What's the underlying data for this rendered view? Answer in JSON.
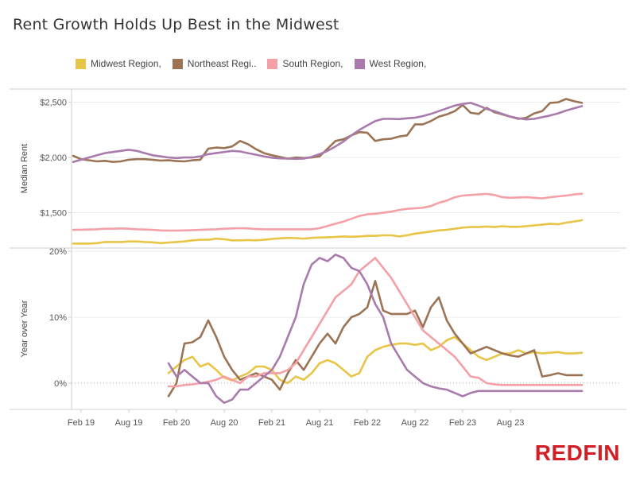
{
  "header": {
    "title": "Rent Growth Holds Up Best in the Midwest"
  },
  "brand": {
    "logo_text": "REDFIN"
  },
  "colors": {
    "midwest": "#e8c547",
    "northeast": "#9b7456",
    "south": "#f4a0a6",
    "west": "#a97bac"
  },
  "legend": [
    {
      "label": "Midwest Region,",
      "color": "#e8c547"
    },
    {
      "label": "Northeast Regi..",
      "color": "#9b7456"
    },
    {
      "label": "South Region,",
      "color": "#f4a0a6"
    },
    {
      "label": "West Region,",
      "color": "#a97bac"
    }
  ],
  "chart_data": {
    "type": "line",
    "x_tick_labels": [
      "Feb 19",
      "Aug 19",
      "Feb 20",
      "Aug 20",
      "Feb 21",
      "Aug 21",
      "Feb 22",
      "Aug 22",
      "Feb 23",
      "Aug 23"
    ],
    "panels": [
      {
        "ylabel": "Median Rent",
        "ylim": [
          1180,
          2620
        ],
        "y_ticks": [
          1500,
          2000,
          2500
        ],
        "y_tick_labels": [
          "$1,500",
          "$2,000",
          "$2,500"
        ],
        "grid": true,
        "series": [
          {
            "name": "Midwest Region,",
            "color": "#e8c547",
            "values": [
              1220,
              1220,
              1220,
              1225,
              1235,
              1235,
              1235,
              1240,
              1240,
              1235,
              1232,
              1225,
              1230,
              1235,
              1240,
              1250,
              1255,
              1255,
              1265,
              1260,
              1250,
              1250,
              1252,
              1250,
              1255,
              1262,
              1268,
              1272,
              1270,
              1265,
              1272,
              1275,
              1278,
              1280,
              1285,
              1282,
              1285,
              1290,
              1290,
              1295,
              1295,
              1285,
              1295,
              1310,
              1320,
              1330,
              1340,
              1345,
              1355,
              1365,
              1370,
              1370,
              1375,
              1370,
              1378,
              1372,
              1372,
              1378,
              1385,
              1392,
              1400,
              1395,
              1410,
              1420,
              1432
            ]
          },
          {
            "name": "Northeast Regi..",
            "color": "#9b7456",
            "values": [
              2015,
              1985,
              1975,
              1965,
              1970,
              1960,
              1965,
              1980,
              1985,
              1985,
              1980,
              1972,
              1975,
              1968,
              1965,
              1975,
              1980,
              2080,
              2090,
              2085,
              2100,
              2150,
              2120,
              2075,
              2040,
              2020,
              2005,
              1990,
              2000,
              1995,
              2000,
              2010,
              2080,
              2150,
              2165,
              2200,
              2230,
              2225,
              2150,
              2165,
              2170,
              2190,
              2200,
              2300,
              2300,
              2330,
              2370,
              2390,
              2420,
              2475,
              2405,
              2395,
              2450,
              2410,
              2390,
              2370,
              2350,
              2360,
              2400,
              2420,
              2495,
              2500,
              2530,
              2510,
              2495
            ]
          },
          {
            "name": "South Region,",
            "color": "#f4a0a6",
            "values": [
              1345,
              1346,
              1348,
              1350,
              1355,
              1355,
              1358,
              1355,
              1350,
              1348,
              1345,
              1340,
              1338,
              1338,
              1340,
              1342,
              1345,
              1348,
              1350,
              1355,
              1358,
              1360,
              1358,
              1352,
              1350,
              1350,
              1350,
              1350,
              1350,
              1350,
              1350,
              1360,
              1380,
              1400,
              1420,
              1445,
              1470,
              1485,
              1490,
              1500,
              1510,
              1525,
              1535,
              1540,
              1545,
              1560,
              1590,
              1610,
              1640,
              1655,
              1660,
              1665,
              1670,
              1660,
              1640,
              1635,
              1638,
              1640,
              1635,
              1630,
              1640,
              1648,
              1655,
              1665,
              1672
            ]
          },
          {
            "name": "West Region,",
            "color": "#a97bac",
            "values": [
              1960,
              1980,
              2000,
              2020,
              2040,
              2050,
              2060,
              2070,
              2060,
              2040,
              2020,
              2010,
              2000,
              1995,
              2000,
              2000,
              2010,
              2030,
              2040,
              2050,
              2060,
              2055,
              2040,
              2025,
              2010,
              1998,
              1992,
              1990,
              1988,
              1990,
              2005,
              2030,
              2060,
              2100,
              2145,
              2200,
              2250,
              2290,
              2330,
              2350,
              2350,
              2348,
              2355,
              2360,
              2375,
              2395,
              2420,
              2445,
              2470,
              2485,
              2495,
              2470,
              2440,
              2420,
              2395,
              2370,
              2355,
              2345,
              2350,
              2365,
              2380,
              2400,
              2425,
              2445,
              2465
            ]
          }
        ]
      },
      {
        "ylabel": "Year over Year",
        "ylim": [
          -0.04,
          0.205
        ],
        "y_ticks": [
          0,
          0.1,
          0.2
        ],
        "y_tick_labels": [
          "0%",
          "10%",
          "20%"
        ],
        "zero_line": "dotted",
        "series": [
          {
            "name": "Midwest Region,",
            "color": "#e8c547",
            "start_index": 12,
            "values": [
              0.015,
              0.025,
              0.035,
              0.04,
              0.025,
              0.03,
              0.02,
              0.008,
              0.004,
              0.01,
              0.015,
              0.025,
              0.025,
              0.02,
              0.005,
              0.0,
              0.01,
              0.005,
              0.015,
              0.03,
              0.035,
              0.03,
              0.02,
              0.01,
              0.015,
              0.04,
              0.05,
              0.055,
              0.058,
              0.06,
              0.06,
              0.058,
              0.06,
              0.05,
              0.055,
              0.065,
              0.07,
              0.06,
              0.05,
              0.04,
              0.035,
              0.04,
              0.045,
              0.045,
              0.05,
              0.045,
              0.047,
              0.045,
              0.046,
              0.047,
              0.045,
              0.045,
              0.046
            ]
          },
          {
            "name": "Northeast Regi..",
            "color": "#9b7456",
            "start_index": 12,
            "values": [
              -0.02,
              0.0,
              0.06,
              0.062,
              0.07,
              0.095,
              0.07,
              0.04,
              0.02,
              0.005,
              0.01,
              0.015,
              0.01,
              0.005,
              -0.01,
              0.015,
              0.035,
              0.02,
              0.04,
              0.06,
              0.075,
              0.06,
              0.085,
              0.1,
              0.105,
              0.115,
              0.155,
              0.11,
              0.105,
              0.105,
              0.105,
              0.11,
              0.085,
              0.115,
              0.13,
              0.095,
              0.075,
              0.06,
              0.045,
              0.05,
              0.055,
              0.05,
              0.045,
              0.042,
              0.04,
              0.045,
              0.05,
              0.01,
              0.012,
              0.015,
              0.012,
              0.012,
              0.012
            ]
          },
          {
            "name": "South Region,",
            "color": "#f4a0a6",
            "start_index": 12,
            "values": [
              -0.005,
              -0.005,
              -0.003,
              -0.002,
              0.0,
              0.002,
              0.005,
              0.01,
              0.005,
              0.0,
              0.01,
              0.01,
              0.015,
              0.015,
              0.015,
              0.02,
              0.03,
              0.05,
              0.07,
              0.09,
              0.11,
              0.13,
              0.14,
              0.15,
              0.17,
              0.18,
              0.19,
              0.175,
              0.16,
              0.14,
              0.12,
              0.1,
              0.08,
              0.07,
              0.06,
              0.05,
              0.04,
              0.025,
              0.01,
              0.008,
              0.0,
              -0.002,
              -0.003,
              -0.003,
              -0.003,
              -0.003,
              -0.003,
              -0.003,
              -0.003,
              -0.003,
              -0.003,
              -0.003,
              -0.003
            ]
          },
          {
            "name": "West Region,",
            "color": "#a97bac",
            "start_index": 12,
            "values": [
              0.03,
              0.01,
              0.02,
              0.01,
              0.0,
              0.0,
              -0.02,
              -0.03,
              -0.025,
              -0.01,
              -0.01,
              0.0,
              0.01,
              0.02,
              0.04,
              0.07,
              0.1,
              0.15,
              0.18,
              0.19,
              0.185,
              0.195,
              0.19,
              0.175,
              0.17,
              0.15,
              0.12,
              0.1,
              0.06,
              0.04,
              0.02,
              0.01,
              0.0,
              -0.005,
              -0.008,
              -0.01,
              -0.015,
              -0.02,
              -0.015,
              -0.012,
              -0.012,
              -0.012,
              -0.012,
              -0.012,
              -0.012,
              -0.012,
              -0.012,
              -0.012,
              -0.012,
              -0.012,
              -0.012,
              -0.012,
              -0.012
            ]
          }
        ]
      }
    ]
  }
}
